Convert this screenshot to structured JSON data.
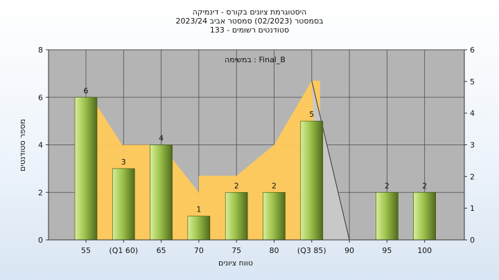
{
  "chart_data": {
    "type": "bar",
    "title_lines": [
      "היסטוגרמת ציונים בקורס - דינמיקה",
      "בסמסטר  (02/2023)  סמסטר אביב 2023/24",
      "סטודנטים רשומים - 133"
    ],
    "annotation": "במשימה : Final_B",
    "xlabel": "טווח ציונים",
    "ylabel": "מספר סטודנטים",
    "categories": [
      "55",
      "(Q1 60)",
      "65",
      "70",
      "75",
      "80",
      "(Q3 85)",
      "90",
      "95",
      "100"
    ],
    "values": [
      6,
      3,
      4,
      1,
      2,
      2,
      5,
      0,
      2,
      2
    ],
    "bar_labels": [
      "6",
      "3",
      "4",
      "1",
      "2",
      "2",
      "5",
      "",
      "2",
      "2"
    ],
    "ylim": [
      0,
      8
    ],
    "yticks": [
      "0",
      "2",
      "4",
      "6",
      "8"
    ],
    "y2lim": [
      0,
      6
    ],
    "y2ticks": [
      "0",
      "1",
      "2",
      "3",
      "4",
      "5",
      "6"
    ],
    "grid": true,
    "colors": {
      "plot_bg": "#b4b4b4",
      "bar_light": "#d8ef98",
      "bar_mid": "#9cc24c",
      "bar_dark": "#506a1c",
      "area_fill": "#ffca5a",
      "shade_fill": "#c8c8c8"
    }
  }
}
